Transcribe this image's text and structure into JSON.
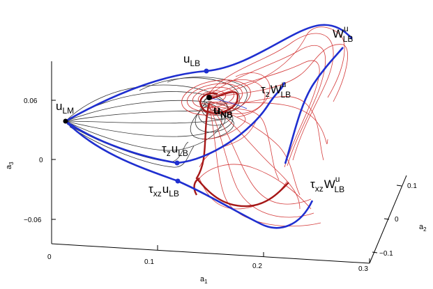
{
  "chart_data": {
    "type": "line",
    "projection": "3d",
    "grid": false,
    "legend": "none",
    "axes": {
      "x": {
        "label": "a",
        "label_sub": "1",
        "ticks": [
          "0",
          "0.1",
          "0.2",
          "0.3"
        ]
      },
      "y": {
        "label": "a",
        "label_sub": "2",
        "ticks": [
          "0.1",
          "0",
          "−0.1"
        ]
      },
      "z": {
        "label": "a",
        "label_sub": "3",
        "ticks": [
          "0.06",
          "0",
          "−0.06"
        ]
      }
    },
    "annotations": [
      {
        "id": "u_lm",
        "base": "u",
        "sub": "LM"
      },
      {
        "id": "u_lb",
        "base": "u",
        "sub": "LB"
      },
      {
        "id": "u_nb",
        "base": "u",
        "sub": "NB"
      },
      {
        "id": "tz_w",
        "pre": "τ",
        "pre_sub": "z",
        "base": "W",
        "sup": "u",
        "sub": "LB"
      },
      {
        "id": "w_lb",
        "base": "W",
        "sup": "u",
        "sub": "LB"
      },
      {
        "id": "tz_u",
        "pre": "τ",
        "pre_sub": "z",
        "base": "u",
        "sub": "LB"
      },
      {
        "id": "txz_u",
        "pre": "τ",
        "pre_sub": "xz",
        "base": "u",
        "sub": "LB"
      },
      {
        "id": "txz_w",
        "pre": "τ",
        "pre_sub": "xz",
        "base": "W",
        "sup": "u",
        "sub": "LB"
      }
    ],
    "series_colors": {
      "heteroclinic": "#1f2fd0",
      "red_orbits": "#d43a3a",
      "red_bold": "#a51717",
      "black_orbits": "#333333",
      "marker": "#000000",
      "marker_blue": "#1f2fd0"
    }
  }
}
